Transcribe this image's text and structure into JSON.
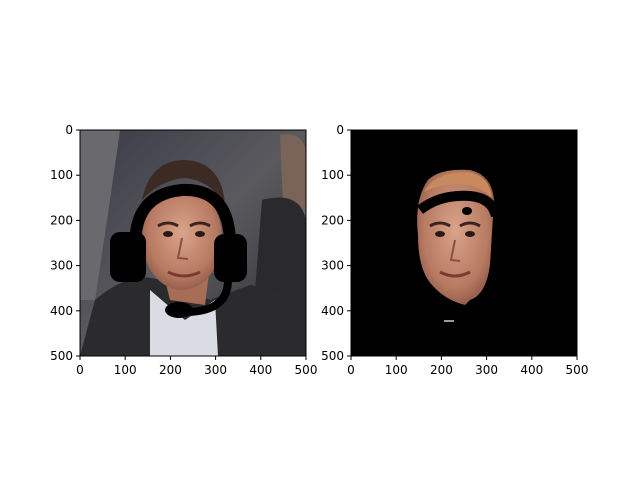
{
  "figure": {
    "background": "#ffffff",
    "subplot_count": 2
  },
  "chart_data": [
    {
      "type": "image",
      "content": "photo of a man's face wearing a black drawn headset overlay",
      "xlim": [
        0,
        500
      ],
      "ylim": [
        500,
        0
      ],
      "xticks": [
        0,
        100,
        200,
        300,
        400,
        500
      ],
      "yticks": [
        0,
        100,
        200,
        300,
        400,
        500
      ],
      "xtick_labels": [
        "0",
        "100",
        "200",
        "300",
        "400",
        "500"
      ],
      "ytick_labels": [
        "0",
        "100",
        "200",
        "300",
        "400",
        "500"
      ],
      "y_inverted": true,
      "grid": false,
      "overlay_color": "#000000"
    },
    {
      "type": "image",
      "content": "segmented face region on black background (face mask cut-out)",
      "xlim": [
        0,
        500
      ],
      "ylim": [
        500,
        0
      ],
      "xticks": [
        0,
        100,
        200,
        300,
        400,
        500
      ],
      "yticks": [
        0,
        100,
        200,
        300,
        400,
        500
      ],
      "xtick_labels": [
        "0",
        "100",
        "200",
        "300",
        "400",
        "500"
      ],
      "ytick_labels": [
        "0",
        "100",
        "200",
        "300",
        "400",
        "500"
      ],
      "y_inverted": true,
      "grid": false,
      "background_color": "#000000"
    }
  ]
}
